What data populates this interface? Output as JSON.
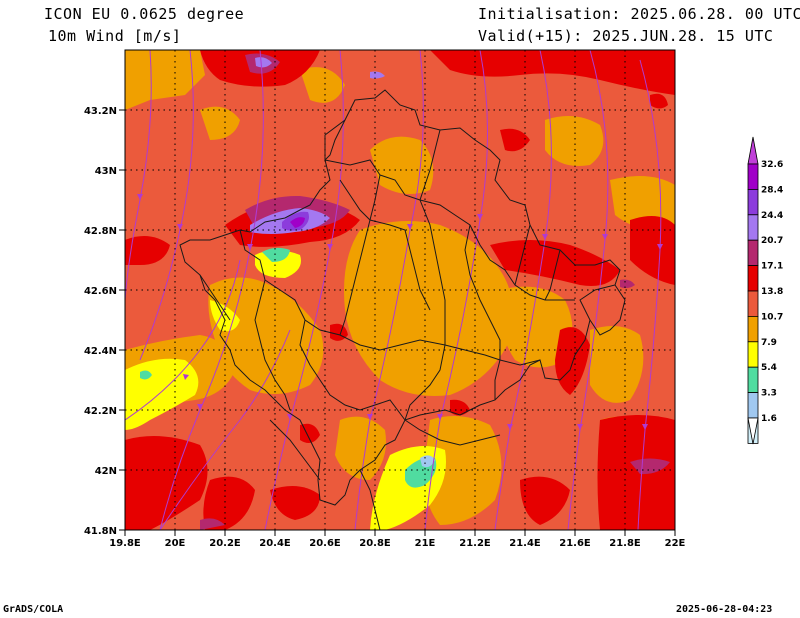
{
  "header": {
    "model": "ICON EU 0.0625 degree",
    "variable": "10m Wind [m/s]",
    "init": "Initialisation: 2025.06.28. 00 UTC",
    "valid": "Valid(+15): 2025.JUN.28. 15 UTC"
  },
  "footer": {
    "left": "GrADS/COLA",
    "right": "2025-06-28-04:23"
  },
  "map": {
    "lon_labels": [
      "19.8E",
      "20E",
      "20.2E",
      "20.4E",
      "20.6E",
      "20.8E",
      "21E",
      "21.2E",
      "21.4E",
      "21.6E",
      "21.8E",
      "22E"
    ],
    "lat_labels": [
      "43.2N",
      "43N",
      "42.8N",
      "42.6N",
      "42.4N",
      "42.2N",
      "42N",
      "41.8N"
    ]
  },
  "legend": {
    "levels": [
      "32.6",
      "28.4",
      "24.4",
      "20.7",
      "17.1",
      "13.8",
      "10.7",
      "7.9",
      "5.4",
      "3.3",
      "1.6"
    ],
    "colors": [
      "#a000c8",
      "#8c3cdc",
      "#a478f0",
      "#b4286e",
      "#e60000",
      "#eb5a3c",
      "#f0a000",
      "#ffff00",
      "#50dca0",
      "#a0c8f0",
      "#d2f0fa"
    ],
    "top_color": "#c040d8",
    "bottom_color": "#ffffff"
  }
}
